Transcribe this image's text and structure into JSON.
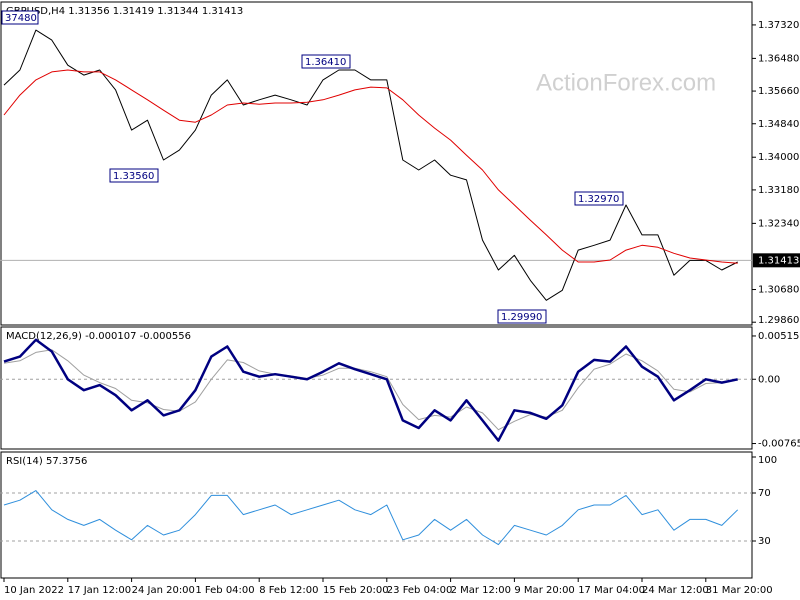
{
  "chart_data": [
    {
      "type": "line",
      "title": "GBPUSD,H4  1.31356 1.31419 1.31344 1.31413",
      "watermark": "ActionForex.com",
      "ylim": [
        1.2979,
        1.3787
      ],
      "yticks": [
        {
          "value": 1.3732,
          "label": "1.37320"
        },
        {
          "value": 1.3648,
          "label": "1.36480"
        },
        {
          "value": 1.3566,
          "label": "1.35660"
        },
        {
          "value": 1.3484,
          "label": "1.34840"
        },
        {
          "value": 1.34,
          "label": "1.34000"
        },
        {
          "value": 1.3318,
          "label": "1.33180"
        },
        {
          "value": 1.3234,
          "label": "1.32340"
        },
        {
          "value": 1.3068,
          "label": "1.30680"
        },
        {
          "value": 1.2986,
          "label": "1.29860"
        }
      ],
      "last": {
        "value": 1.31413,
        "label": "1.31413"
      },
      "annotations": [
        {
          "value": 1.3748,
          "label": "37480"
        },
        {
          "value": 1.3356,
          "label": "1.33560"
        },
        {
          "value": 1.3641,
          "label": "1.36410"
        },
        {
          "value": 1.3297,
          "label": "1.32970"
        },
        {
          "value": 1.2999,
          "label": "1.29990"
        }
      ],
      "series": [
        {
          "color": "#000000",
          "width": 1,
          "values": [
            1.3581,
            1.3619,
            1.3719,
            1.3694,
            1.3631,
            1.3606,
            1.3619,
            1.3569,
            1.3468,
            1.3493,
            1.3393,
            1.3418,
            1.3468,
            1.3556,
            1.3594,
            1.3531,
            1.3544,
            1.3556,
            1.3544,
            1.3531,
            1.3594,
            1.3619,
            1.3619,
            1.3594,
            1.3594,
            1.3393,
            1.3368,
            1.3393,
            1.3355,
            1.3343,
            1.3192,
            1.3117,
            1.3154,
            1.3091,
            1.3041,
            1.3066,
            1.3167,
            1.3179,
            1.3192,
            1.328,
            1.3205,
            1.3205,
            1.3104,
            1.3141,
            1.3141,
            1.3117,
            1.3137
          ]
        },
        {
          "color": "#e00000",
          "width": 1,
          "values": [
            1.3506,
            1.3556,
            1.3594,
            1.3614,
            1.3619,
            1.3614,
            1.3614,
            1.3594,
            1.3569,
            1.3544,
            1.3518,
            1.3493,
            1.3488,
            1.3506,
            1.3531,
            1.3536,
            1.3533,
            1.3536,
            1.3536,
            1.3538,
            1.3544,
            1.3556,
            1.3569,
            1.3576,
            1.3574,
            1.3544,
            1.3506,
            1.3473,
            1.3443,
            1.3405,
            1.3368,
            1.3318,
            1.328,
            1.3242,
            1.3205,
            1.3167,
            1.3137,
            1.3137,
            1.3142,
            1.3167,
            1.3179,
            1.3174,
            1.3159,
            1.3147,
            1.3142,
            1.3137,
            1.3134
          ]
        }
      ]
    },
    {
      "type": "line",
      "title": "MACD(12,26,9) -0.000107 -0.000556",
      "ylim": [
        -0.0083,
        0.0061
      ],
      "yticks": [
        0.005152,
        {
          "value": 0,
          "label": "0.00"
        },
        -0.00765
      ],
      "levels": [
        0
      ],
      "series": [
        {
          "color": "#a0a0a0",
          "width": 1,
          "values": [
            0.0019,
            0.0022,
            0.0032,
            0.0035,
            0.0022,
            0.0005,
            -0.0004,
            -0.0011,
            -0.0025,
            -0.0028,
            -0.0036,
            -0.0038,
            -0.0027,
            0,
            0.0023,
            0.002,
            0.001,
            0.0006,
            0.0004,
            0.0001,
            0.0005,
            0.0013,
            0.0013,
            0.0009,
            0.0003,
            -0.003,
            -0.0048,
            -0.0043,
            -0.0045,
            -0.0033,
            -0.004,
            -0.006,
            -0.005,
            -0.0042,
            -0.0045,
            -0.0037,
            -0.001,
            0.0012,
            0.0018,
            0.003,
            0.0022,
            0.001,
            -0.0012,
            -0.0015,
            -0.0005,
            -0.0004,
            -0.0001
          ]
        },
        {
          "color": "#000080",
          "width": 2.5,
          "values": [
            0.0021,
            0.0027,
            0.0047,
            0.0033,
            0,
            -0.0013,
            -0.0007,
            -0.0019,
            -0.0037,
            -0.0025,
            -0.0043,
            -0.0037,
            -0.0013,
            0.0027,
            0.0039,
            0.0009,
            0.0003,
            0.0006,
            0.0003,
            0,
            0.0009,
            0.0019,
            0.0012,
            0.0006,
            0,
            -0.0049,
            -0.0058,
            -0.0037,
            -0.0049,
            -0.0025,
            -0.0049,
            -0.0073,
            -0.0037,
            -0.004,
            -0.0047,
            -0.0031,
            0.0009,
            0.0023,
            0.0021,
            0.0039,
            0.0015,
            0.0003,
            -0.0025,
            -0.0013,
            0,
            -0.0004,
            0
          ]
        }
      ]
    },
    {
      "type": "line",
      "title": "RSI(14) 57.3756",
      "ylim": [
        0,
        100
      ],
      "yticks": [
        100,
        70,
        30
      ],
      "levels": [
        70,
        30
      ],
      "categories": [
        "10 Jan 2022",
        null,
        null,
        null,
        "17 Jan 12:00",
        null,
        null,
        null,
        "24 Jan 20:00",
        null,
        null,
        null,
        "1 Feb 04:00",
        null,
        null,
        null,
        "8 Feb 12:00",
        null,
        null,
        null,
        "15 Feb 20:00",
        null,
        null,
        null,
        "23 Feb 04:00",
        null,
        null,
        null,
        "2 Mar 12:00",
        null,
        null,
        null,
        "9 Mar 20:00",
        null,
        null,
        null,
        "17 Mar 04:00",
        null,
        null,
        null,
        "24 Mar 12:00",
        null,
        null,
        null,
        "31 Mar 20:00",
        null,
        null
      ],
      "series": [
        {
          "color": "#2f8fdc",
          "width": 1,
          "values": [
            60,
            64,
            72,
            56,
            48,
            43,
            48,
            39,
            31,
            43,
            35,
            39,
            52,
            68,
            68,
            52,
            56,
            60,
            52,
            56,
            60,
            64,
            56,
            52,
            60,
            31,
            35,
            48,
            39,
            48,
            35,
            27,
            43,
            39,
            35,
            43,
            56,
            60,
            60,
            68,
            52,
            56,
            39,
            48,
            48,
            43,
            56
          ]
        }
      ]
    }
  ]
}
